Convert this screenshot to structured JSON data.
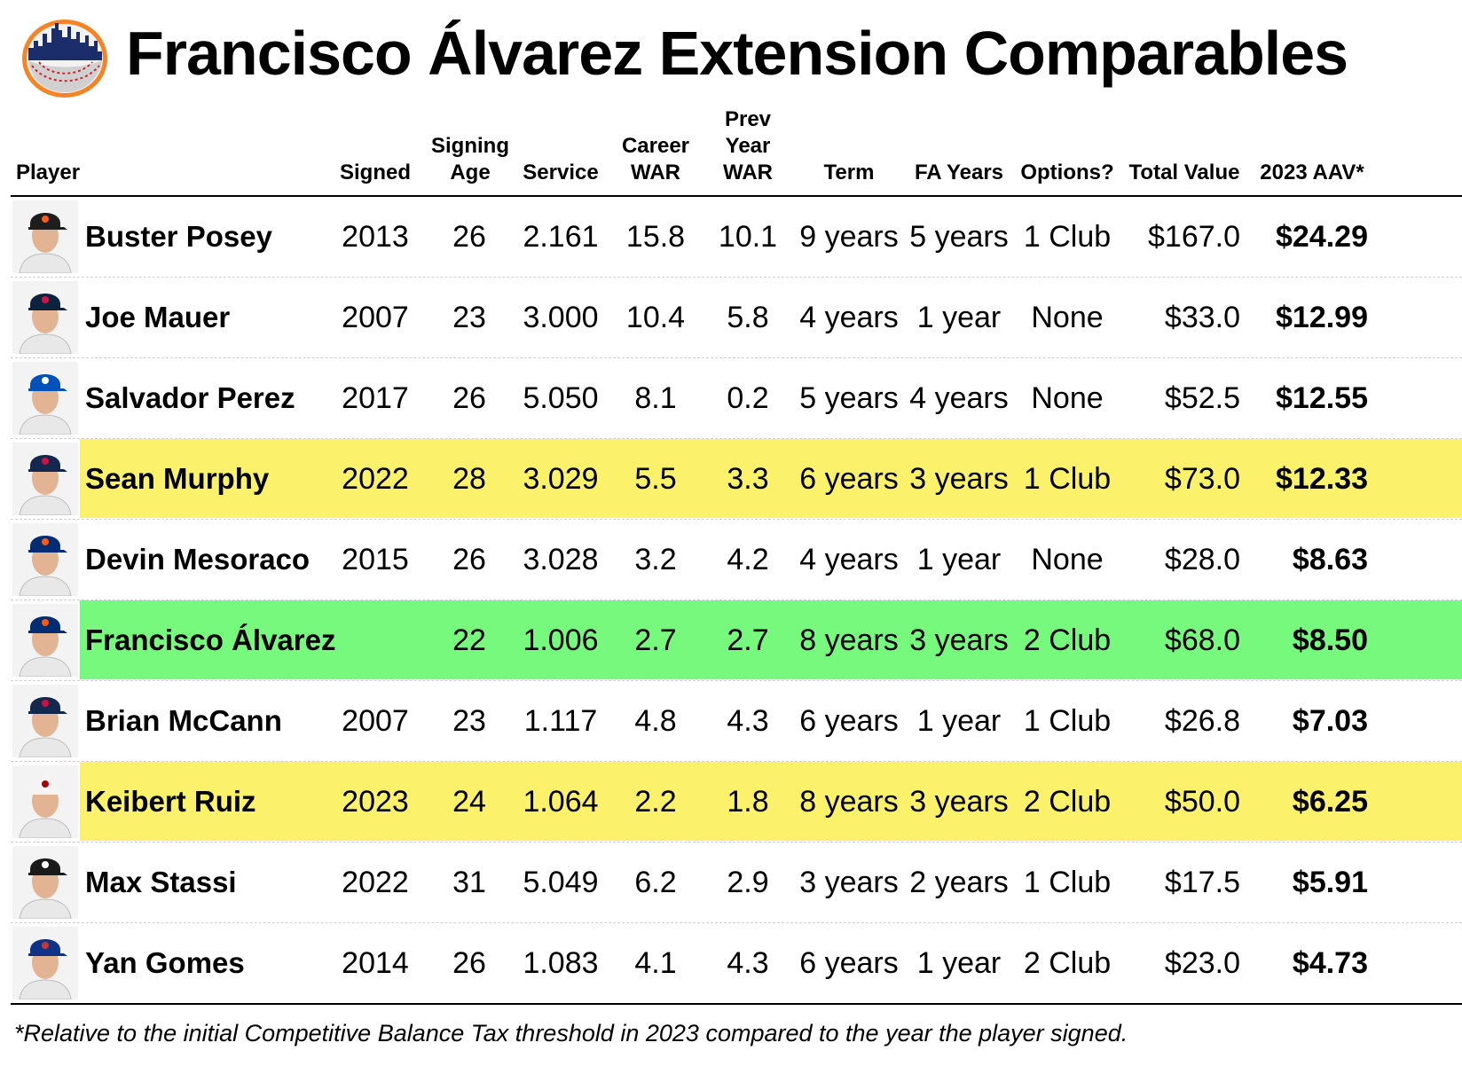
{
  "title": "Francisco Álvarez Extension Comparables",
  "footnote": "*Relative to the initial Competitive Balance Tax threshold in 2023 compared to the year the player signed.",
  "colors": {
    "yellow": "#fcf16a",
    "green": "#77f97d"
  },
  "chart_data": {
    "type": "table",
    "columns": [
      "Player",
      "Signed",
      "Signing\nAge",
      "Service",
      "Career\nWAR",
      "Prev\nYear\nWAR",
      "Term",
      "FA Years",
      "Options?",
      "Total Value",
      "2023 AAV*"
    ],
    "rows": [
      {
        "player": "Buster Posey",
        "signed": "2013",
        "age": "26",
        "service": "2.161",
        "career_war": "15.8",
        "prev_war": "10.1",
        "term": "9 years",
        "fa_years": "5 years",
        "options": "1 Club",
        "total_value": "$167.0",
        "aav": "$24.29",
        "highlight": ""
      },
      {
        "player": "Joe Mauer",
        "signed": "2007",
        "age": "23",
        "service": "3.000",
        "career_war": "10.4",
        "prev_war": "5.8",
        "term": "4 years",
        "fa_years": "1 year",
        "options": "None",
        "total_value": "$33.0",
        "aav": "$12.99",
        "highlight": ""
      },
      {
        "player": "Salvador Perez",
        "signed": "2017",
        "age": "26",
        "service": "5.050",
        "career_war": "8.1",
        "prev_war": "0.2",
        "term": "5 years",
        "fa_years": "4 years",
        "options": "None",
        "total_value": "$52.5",
        "aav": "$12.55",
        "highlight": ""
      },
      {
        "player": "Sean Murphy",
        "signed": "2022",
        "age": "28",
        "service": "3.029",
        "career_war": "5.5",
        "prev_war": "3.3",
        "term": "6 years",
        "fa_years": "3 years",
        "options": "1 Club",
        "total_value": "$73.0",
        "aav": "$12.33",
        "highlight": "yellow"
      },
      {
        "player": "Devin Mesoraco",
        "signed": "2015",
        "age": "26",
        "service": "3.028",
        "career_war": "3.2",
        "prev_war": "4.2",
        "term": "4 years",
        "fa_years": "1 year",
        "options": "None",
        "total_value": "$28.0",
        "aav": "$8.63",
        "highlight": ""
      },
      {
        "player": "Francisco Álvarez",
        "signed": "",
        "age": "22",
        "service": "1.006",
        "career_war": "2.7",
        "prev_war": "2.7",
        "term": "8 years",
        "fa_years": "3 years",
        "options": "2 Club",
        "total_value": "$68.0",
        "aav": "$8.50",
        "highlight": "green"
      },
      {
        "player": "Brian McCann",
        "signed": "2007",
        "age": "23",
        "service": "1.117",
        "career_war": "4.8",
        "prev_war": "4.3",
        "term": "6 years",
        "fa_years": "1 year",
        "options": "1 Club",
        "total_value": "$26.8",
        "aav": "$7.03",
        "highlight": ""
      },
      {
        "player": "Keibert Ruiz",
        "signed": "2023",
        "age": "24",
        "service": "1.064",
        "career_war": "2.2",
        "prev_war": "1.8",
        "term": "8 years",
        "fa_years": "3 years",
        "options": "2 Club",
        "total_value": "$50.0",
        "aav": "$6.25",
        "highlight": "yellow"
      },
      {
        "player": "Max Stassi",
        "signed": "2022",
        "age": "31",
        "service": "5.049",
        "career_war": "6.2",
        "prev_war": "2.9",
        "term": "3 years",
        "fa_years": "2 years",
        "options": "1 Club",
        "total_value": "$17.5",
        "aav": "$5.91",
        "highlight": ""
      },
      {
        "player": "Yan Gomes",
        "signed": "2014",
        "age": "26",
        "service": "1.083",
        "career_war": "4.1",
        "prev_war": "4.3",
        "term": "6 years",
        "fa_years": "1 year",
        "options": "2 Club",
        "total_value": "$23.0",
        "aav": "$4.73",
        "highlight": ""
      }
    ],
    "caps": [
      {
        "team": "giants",
        "color": "#1e1e1e",
        "accent": "#fd5a1e"
      },
      {
        "team": "twins",
        "color": "#0c2340",
        "accent": "#d31145"
      },
      {
        "team": "royals",
        "color": "#0051ba",
        "accent": "#ffffff"
      },
      {
        "team": "braves",
        "color": "#13274f",
        "accent": "#ce1141"
      },
      {
        "team": "mets",
        "color": "#002d72",
        "accent": "#ff5910"
      },
      {
        "team": "mets",
        "color": "#002d72",
        "accent": "#ff5910"
      },
      {
        "team": "braves",
        "color": "#13274f",
        "accent": "#ce1141"
      },
      {
        "team": "nationals",
        "color": "#f4f4f4",
        "accent": "#ab0003"
      },
      {
        "team": "white-sox",
        "color": "#1a1a1a",
        "accent": "#ffffff"
      },
      {
        "team": "cubs",
        "color": "#0e3386",
        "accent": "#cc3433"
      }
    ]
  }
}
